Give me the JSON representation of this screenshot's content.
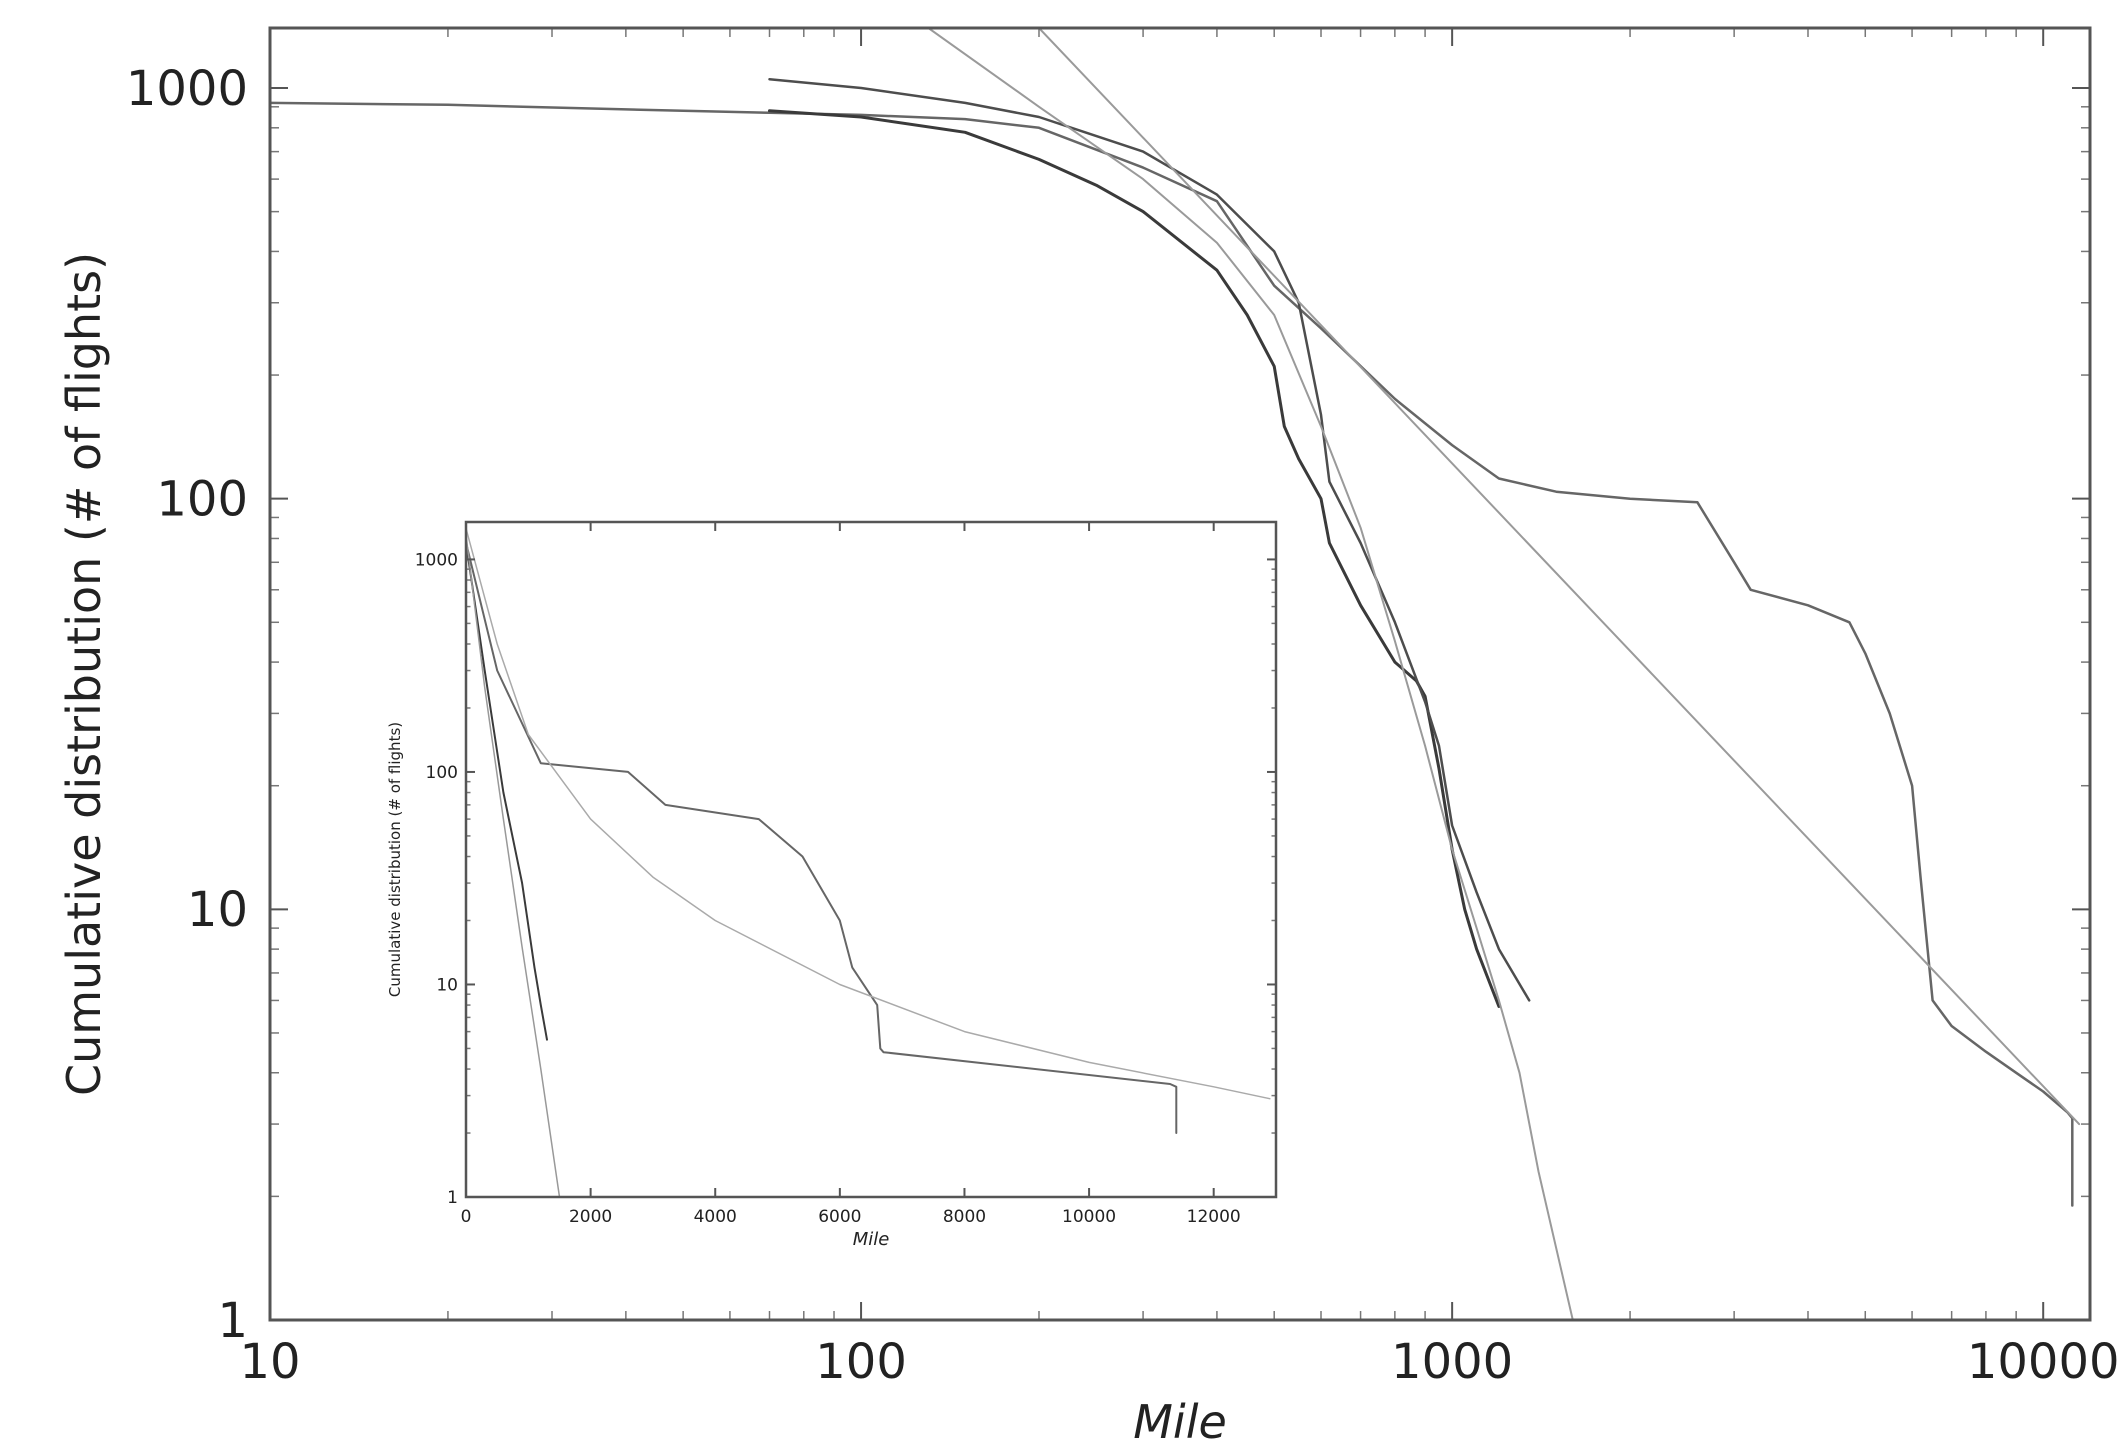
{
  "chart_data": [
    {
      "type": "line",
      "title": "",
      "xlabel": "Mile",
      "ylabel": "Cumulative distribution (# of flights)",
      "xscale": "log",
      "yscale": "log",
      "xlim": [
        10,
        12000
      ],
      "ylim": [
        1,
        1400
      ],
      "xticks": [
        10,
        100,
        1000,
        10000
      ],
      "xtick_labels": [
        "10",
        "100",
        "1000",
        "10000"
      ],
      "yticks": [
        1,
        10,
        100,
        1000
      ],
      "ytick_labels": [
        "1",
        "10",
        "100",
        "1000"
      ],
      "grid": false,
      "legend": "none",
      "series": [
        {
          "color": "#666666",
          "width": 2.5,
          "x": [
            10,
            20,
            50,
            70,
            100,
            150,
            200,
            300,
            400,
            500,
            600,
            800,
            1000,
            1200,
            1500,
            2000,
            2600,
            3000,
            3200,
            4000,
            4700,
            5000,
            5500,
            6000,
            6200,
            6500,
            7000,
            8000,
            9000,
            10000,
            11000,
            11200,
            11200
          ],
          "y": [
            920,
            910,
            880,
            870,
            860,
            840,
            800,
            640,
            530,
            330,
            260,
            175,
            135,
            112,
            104,
            100,
            98,
            70,
            60,
            55,
            50,
            42,
            30,
            20,
            12,
            6,
            5.2,
            4.5,
            4.0,
            3.6,
            3.2,
            3.1,
            1.9
          ]
        },
        {
          "color": "#3a3a3a",
          "width": 3,
          "x": [
            70,
            100,
            150,
            200,
            250,
            300,
            400,
            450,
            500,
            520,
            550,
            600,
            620,
            700,
            800,
            870,
            900,
            950,
            1000,
            1050,
            1100,
            1200
          ],
          "y": [
            880,
            850,
            780,
            670,
            580,
            500,
            360,
            280,
            210,
            150,
            125,
            100,
            78,
            55,
            40,
            36,
            33,
            22,
            14,
            10,
            8,
            5.8
          ]
        },
        {
          "color": "#4d4d4d",
          "width": 2.5,
          "x": [
            70,
            100,
            150,
            200,
            300,
            400,
            500,
            550,
            600,
            620,
            700,
            800,
            900,
            950,
            1000,
            1100,
            1200,
            1350
          ],
          "y": [
            1050,
            1000,
            920,
            850,
            700,
            550,
            400,
            300,
            160,
            110,
            78,
            50,
            32,
            25,
            16,
            11,
            8,
            6
          ]
        },
        {
          "color": "#9a9a9a",
          "width": 2,
          "x": [
            130,
            200,
            300,
            400,
            500,
            600,
            700,
            800,
            900,
            1000,
            1100,
            1200,
            1300,
            1400,
            1600
          ],
          "y": [
            1400,
            900,
            600,
            420,
            280,
            150,
            85,
            45,
            25,
            14,
            9,
            6,
            4,
            2.3,
            1
          ]
        },
        {
          "color": "#9a9a9a",
          "width": 2,
          "x": [
            200,
            11500
          ],
          "y": [
            1400,
            3
          ]
        }
      ]
    },
    {
      "type": "line",
      "title": "",
      "xlabel": "Mile",
      "ylabel": "Cumulative distribution (# of flights)",
      "xscale": "linear",
      "yscale": "log",
      "xlim": [
        0,
        13000
      ],
      "ylim": [
        1,
        1500
      ],
      "xticks": [
        0,
        2000,
        4000,
        6000,
        8000,
        10000,
        12000
      ],
      "xtick_labels": [
        "0",
        "2000",
        "4000",
        "6000",
        "8000",
        "10000",
        "12000"
      ],
      "yticks": [
        1,
        10,
        100,
        1000
      ],
      "ytick_labels": [
        "1",
        "10",
        "100",
        "1000"
      ],
      "grid": false,
      "legend": "none",
      "series": [
        {
          "color": "#666666",
          "width": 2,
          "x": [
            0,
            500,
            1200,
            2600,
            3200,
            4700,
            5400,
            6000,
            6200,
            6600,
            6650,
            6700,
            11300,
            11400,
            11400
          ],
          "y": [
            1200,
            300,
            110,
            100,
            70,
            60,
            40,
            20,
            12,
            8,
            5,
            4.8,
            3.4,
            3.3,
            2
          ]
        },
        {
          "color": "#3a3a3a",
          "width": 2,
          "x": [
            0,
            300,
            600,
            900,
            1100,
            1200,
            1300
          ],
          "y": [
            1200,
            300,
            80,
            30,
            12,
            8,
            5.5
          ]
        },
        {
          "color": "#999999",
          "width": 1.5,
          "x": [
            0,
            300,
            600,
            900,
            1200,
            1500
          ],
          "y": [
            1300,
            250,
            60,
            15,
            4,
            1
          ]
        },
        {
          "color": "#aaaaaa",
          "width": 1.5,
          "x": [
            0,
            500,
            1000,
            2000,
            3000,
            4000,
            6000,
            8000,
            10000,
            12000,
            12900
          ],
          "y": [
            1400,
            400,
            150,
            60,
            32,
            20,
            10,
            6,
            4.3,
            3.3,
            2.9
          ]
        }
      ]
    }
  ]
}
